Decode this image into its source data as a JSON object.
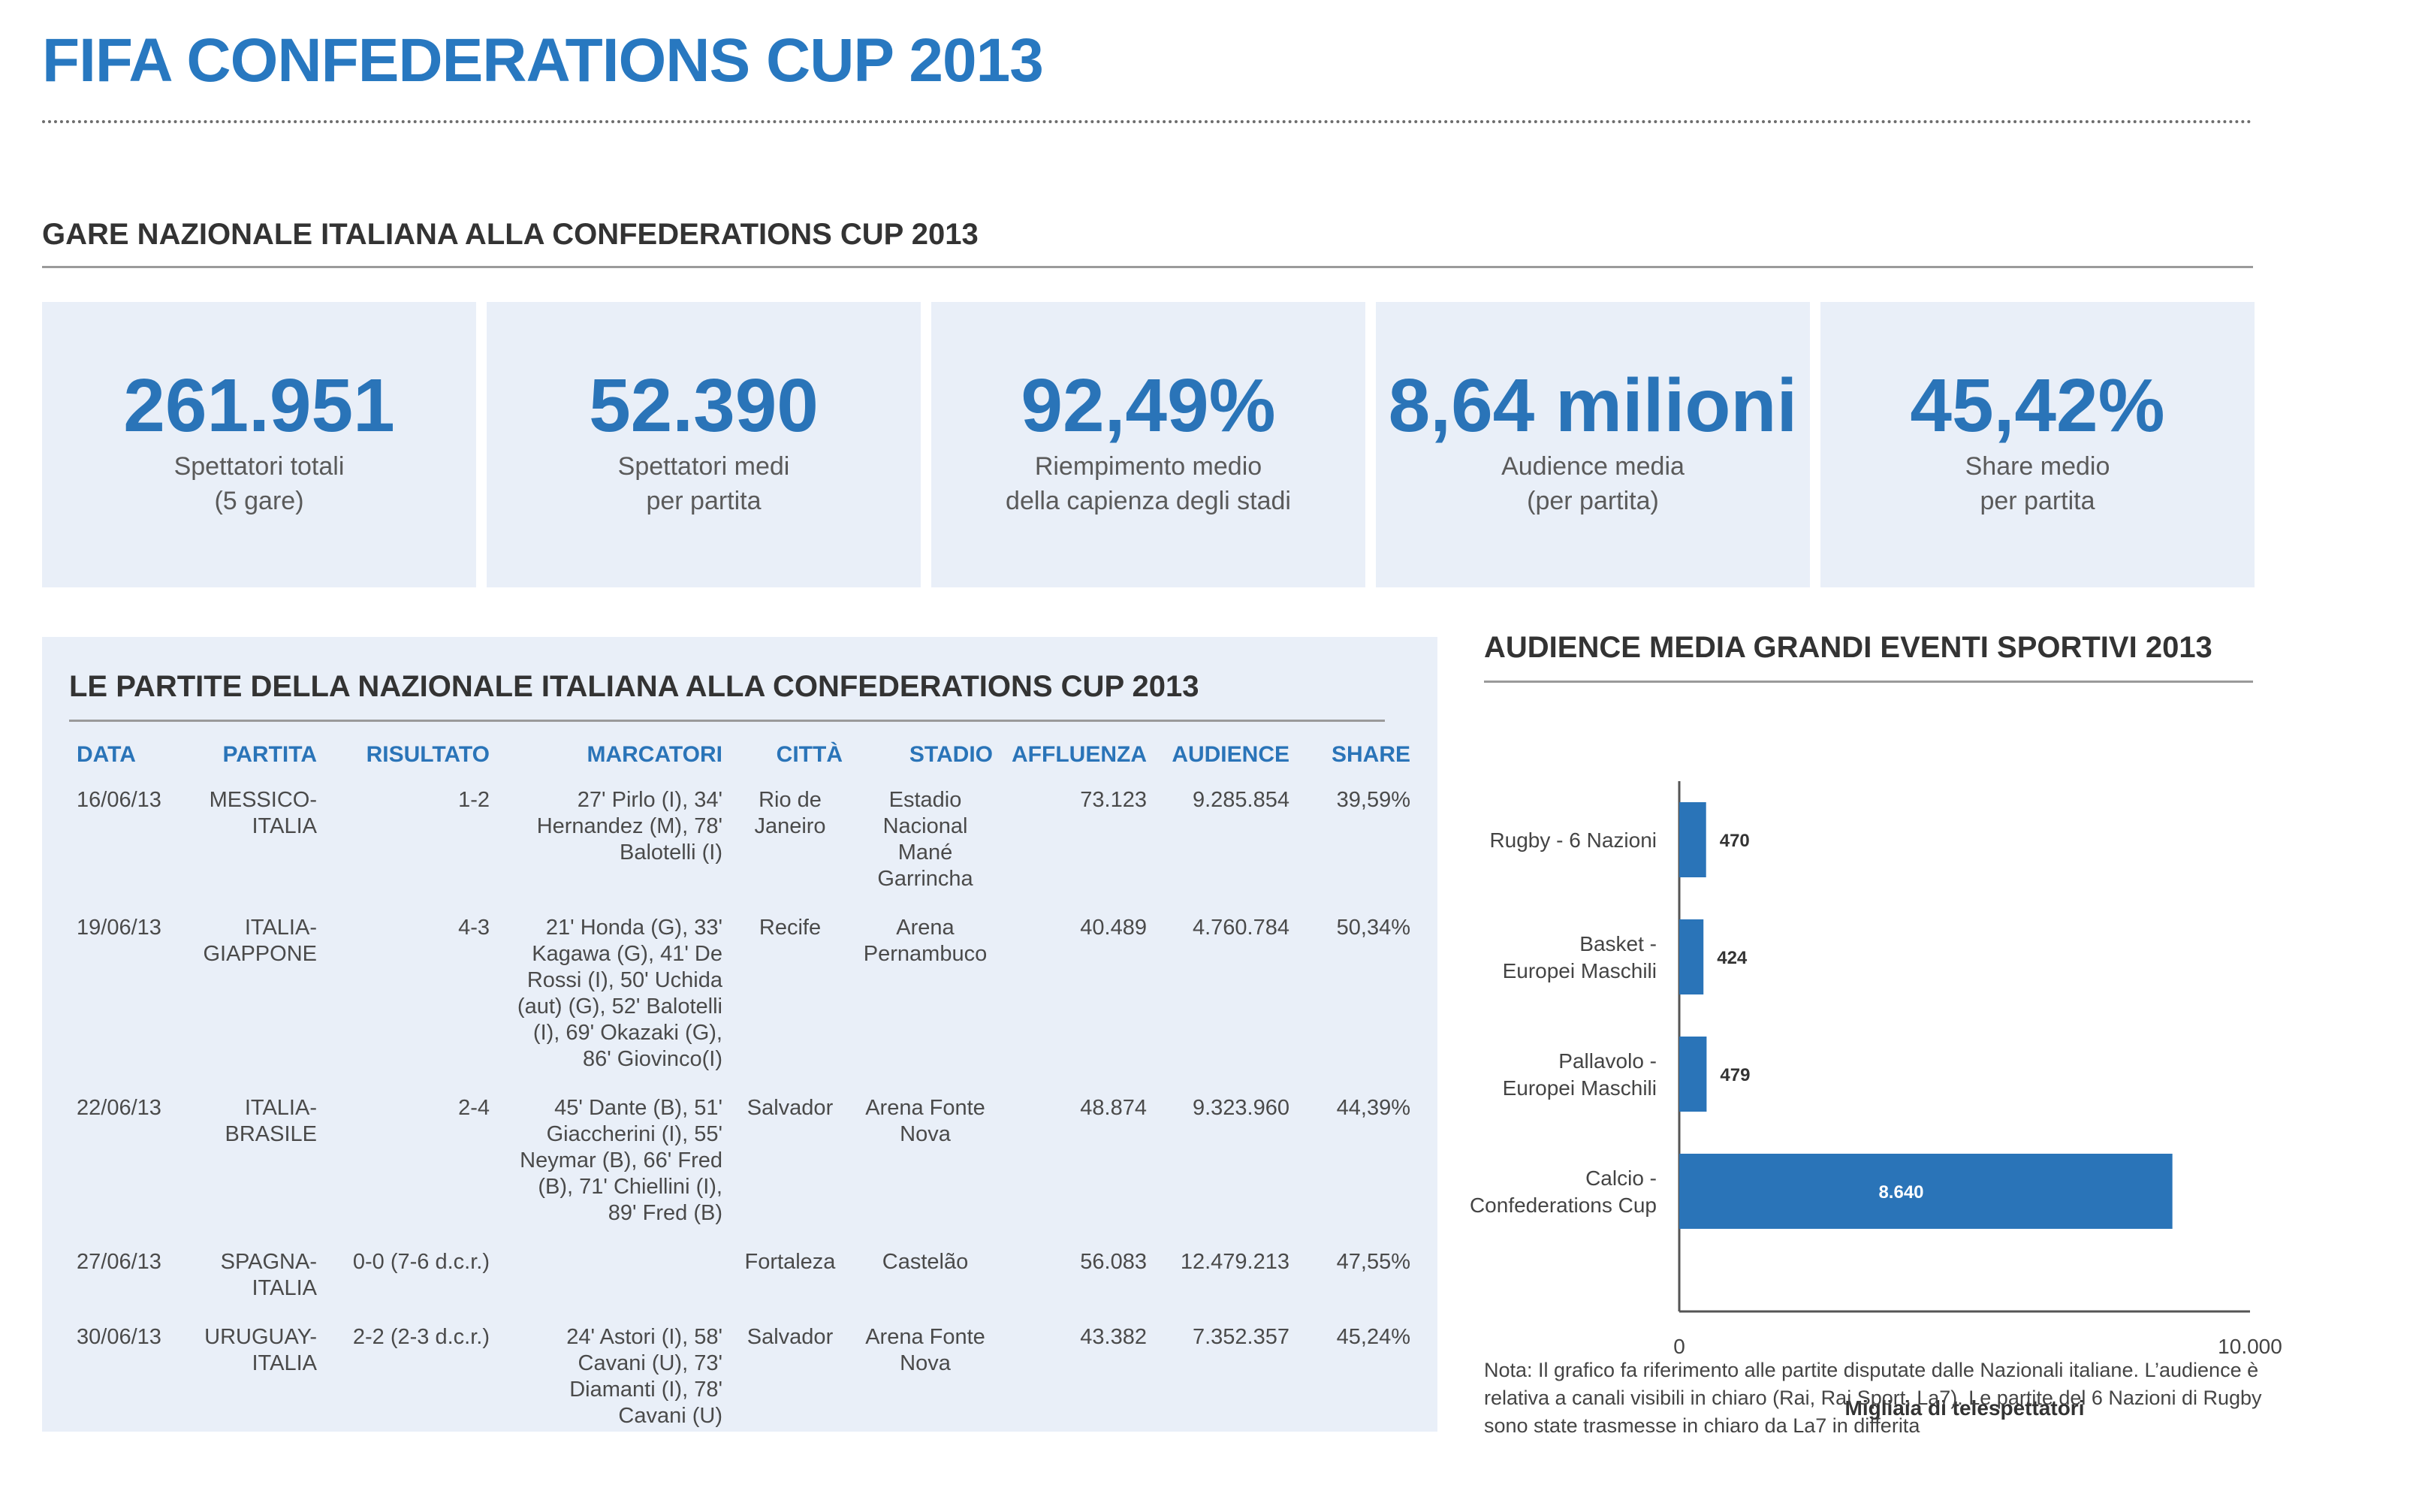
{
  "title": "FIFA CONFEDERATIONS CUP 2013",
  "stats_section": {
    "heading": "GARE NAZIONALE ITALIANA ALLA CONFEDERATIONS CUP 2013"
  },
  "stats": [
    {
      "value": "261.951",
      "label": "Spettatori totali\n(5 gare)"
    },
    {
      "value": "52.390",
      "label": "Spettatori medi\nper partita"
    },
    {
      "value": "92,49%",
      "label": "Riempimento medio\ndella capienza degli stadi"
    },
    {
      "value": "8,64 milioni",
      "label": "Audience media\n(per partita)"
    },
    {
      "value": "45,42%",
      "label": "Share medio\nper partita"
    }
  ],
  "matches": {
    "heading": "LE PARTITE DELLA NAZIONALE ITALIANA ALLA CONFEDERATIONS CUP 2013",
    "columns": [
      "DATA",
      "PARTITA",
      "RISULTATO",
      "MARCATORI",
      "CITTÀ",
      "STADIO",
      "AFFLUENZA",
      "AUDIENCE",
      "SHARE"
    ],
    "rows": [
      [
        "16/06/13",
        "MESSICO-\nITALIA",
        "1-2",
        "27' Pirlo (I), 34'\nHernandez (M), 78'\nBalotelli (I)",
        "Rio de\nJaneiro",
        "Estadio\nNacional\nMané\nGarrincha",
        "73.123",
        "9.285.854",
        "39,59%"
      ],
      [
        "19/06/13",
        "ITALIA-\nGIAPPONE",
        "4-3",
        "21' Honda (G), 33'\nKagawa (G), 41' De\nRossi (I), 50' Uchida\n(aut) (G), 52' Balotelli\n(I), 69' Okazaki (G),\n86' Giovinco(I)",
        "Recife",
        "Arena\nPernambuco",
        "40.489",
        "4.760.784",
        "50,34%"
      ],
      [
        "22/06/13",
        "ITALIA-\nBRASILE",
        "2-4",
        "45' Dante (B), 51'\nGiaccherini (I), 55'\nNeymar (B), 66' Fred\n(B), 71' Chiellini (I),\n89' Fred (B)",
        "Salvador",
        "Arena Fonte\nNova",
        "48.874",
        "9.323.960",
        "44,39%"
      ],
      [
        "27/06/13",
        "SPAGNA-\nITALIA",
        "0-0 (7-6 d.c.r.)",
        "",
        "Fortaleza",
        "Castelão",
        "56.083",
        "12.479.213",
        "47,55%"
      ],
      [
        "30/06/13",
        "URUGUAY-\nITALIA",
        "2-2 (2-3 d.c.r.)",
        "24' Astori (I), 58'\nCavani (U), 73'\nDiamanti (I), 78'\nCavani (U)",
        "Salvador",
        "Arena Fonte\nNova",
        "43.382",
        "7.352.357",
        "45,24%"
      ]
    ]
  },
  "chart_data": {
    "type": "bar",
    "orientation": "horizontal",
    "title": "AUDIENCE MEDIA GRANDI EVENTI SPORTIVI 2013",
    "categories": [
      "Rugby - 6 Nazioni",
      "Basket -\nEuropei Maschili",
      "Pallavolo -\nEuropei Maschili",
      "Calcio -\nConfederations Cup"
    ],
    "values": [
      470,
      424,
      479,
      8640
    ],
    "value_labels": [
      "470",
      "424",
      "479",
      "8.640"
    ],
    "xlabel": "Migliaia di telespettatori",
    "xlim": [
      0,
      10000
    ],
    "x_ticks": [
      "0",
      "10.000"
    ],
    "bar_color": "#2a74b8",
    "grid": false,
    "note": "Nota: Il grafico fa riferimento alle partite disputate dalle Nazionali italiane. L’audience è relativa a canali visibili in chiaro (Rai, Rai Sport, La7). Le partite del 6 Nazioni di Rugby sono state trasmesse in chiaro da La7 in differita"
  }
}
